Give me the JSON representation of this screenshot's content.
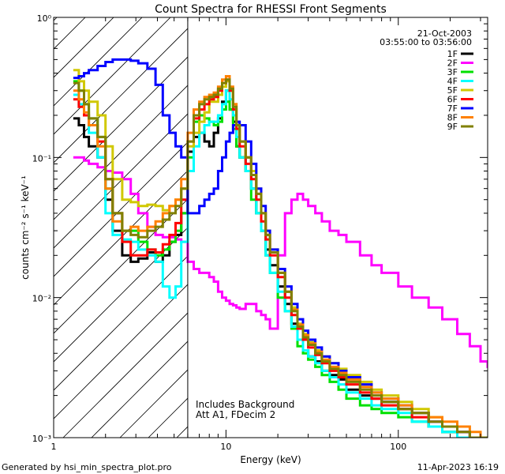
{
  "chart_data": {
    "type": "line",
    "title": "Count Spectra for RHESSI Front Segments",
    "xlabel": "Energy (keV)",
    "ylabel": "counts cm⁻² s⁻¹ keV⁻¹",
    "xscale": "log",
    "yscale": "log",
    "xlim": [
      1,
      330
    ],
    "ylim": [
      0.001,
      1
    ],
    "x_tick_labels": [
      {
        "value": 1,
        "label": "1"
      },
      {
        "value": 10,
        "label": "10"
      },
      {
        "value": 100,
        "label": "100"
      }
    ],
    "y_tick_labels": [
      {
        "value": 1,
        "label": "10⁰"
      },
      {
        "value": 0.1,
        "label": "10⁻¹"
      },
      {
        "value": 0.01,
        "label": "10⁻²"
      },
      {
        "value": 0.001,
        "label": "10⁻³"
      }
    ],
    "header_lines": [
      "21-Oct-2003",
      "03:55:00 to 03:56:00"
    ],
    "annotation_lines": [
      "Includes Background",
      "Att A1, FDecim 2"
    ],
    "footer_left": "Generated by hsi_min_spectra_plot.pro",
    "footer_right": "11-Apr-2023 16:19",
    "hatched_region_x": [
      1,
      6
    ],
    "vertical_line_x": 6,
    "legend_position": "top-right",
    "x_bins": [
      1.3,
      1.4,
      1.5,
      1.6,
      1.8,
      2.0,
      2.2,
      2.5,
      2.8,
      3.1,
      3.5,
      3.9,
      4.3,
      4.7,
      5.1,
      5.5,
      6.0,
      6.5,
      7.0,
      7.5,
      8.0,
      8.5,
      9.0,
      9.5,
      10.0,
      10.5,
      11.0,
      11.5,
      12.0,
      13.0,
      14.0,
      15.0,
      16.0,
      17.0,
      18.0,
      20.0,
      22.0,
      24.0,
      26.0,
      28.0,
      30.0,
      33.0,
      36.0,
      40.0,
      45.0,
      50.0,
      60.0,
      70.0,
      80.0,
      100.0,
      120.0,
      150.0,
      180.0,
      220.0,
      260.0,
      300.0,
      330.0
    ],
    "series": [
      {
        "name": "1F",
        "color": "#000000",
        "values": [
          0.19,
          0.17,
          0.14,
          0.12,
          0.1,
          0.05,
          0.03,
          0.02,
          0.018,
          0.019,
          0.021,
          0.018,
          0.02,
          0.025,
          0.028,
          0.04,
          0.11,
          0.14,
          0.15,
          0.13,
          0.12,
          0.15,
          0.19,
          0.25,
          0.3,
          0.22,
          0.18,
          0.12,
          0.1,
          0.08,
          0.06,
          0.04,
          0.03,
          0.022,
          0.017,
          0.012,
          0.009,
          0.0065,
          0.005,
          0.0042,
          0.0038,
          0.0035,
          0.003,
          0.0028,
          0.0026,
          0.0022,
          0.002,
          0.0019,
          0.0018,
          0.0016,
          0.0015,
          0.0012,
          0.0011,
          0.001,
          0.001,
          0.001,
          0.001
        ]
      },
      {
        "name": "2F",
        "color": "#ff00ff",
        "values": [
          0.1,
          0.1,
          0.095,
          0.09,
          0.085,
          0.08,
          0.078,
          0.07,
          0.055,
          0.04,
          0.032,
          0.028,
          0.027,
          0.027,
          0.026,
          0.025,
          0.018,
          0.016,
          0.015,
          0.015,
          0.014,
          0.013,
          0.011,
          0.01,
          0.0095,
          0.009,
          0.0088,
          0.0085,
          0.0083,
          0.009,
          0.009,
          0.008,
          0.0075,
          0.007,
          0.006,
          0.02,
          0.04,
          0.05,
          0.055,
          0.05,
          0.045,
          0.04,
          0.035,
          0.03,
          0.028,
          0.025,
          0.02,
          0.017,
          0.015,
          0.012,
          0.01,
          0.0085,
          0.007,
          0.0055,
          0.0045,
          0.0035,
          0.0032
        ]
      },
      {
        "name": "3F",
        "color": "#00e000",
        "values": [
          0.35,
          0.3,
          0.24,
          0.19,
          0.14,
          0.06,
          0.04,
          0.03,
          0.03,
          0.025,
          0.022,
          0.02,
          0.022,
          0.025,
          0.03,
          0.04,
          0.1,
          0.18,
          0.2,
          0.19,
          0.18,
          0.17,
          0.18,
          0.22,
          0.25,
          0.22,
          0.16,
          0.12,
          0.1,
          0.08,
          0.05,
          0.04,
          0.03,
          0.02,
          0.015,
          0.01,
          0.008,
          0.006,
          0.0045,
          0.004,
          0.0036,
          0.0032,
          0.0028,
          0.0025,
          0.0022,
          0.0019,
          0.0017,
          0.0016,
          0.0015,
          0.0014,
          0.0013,
          0.0012,
          0.0011,
          0.001,
          0.001,
          0.001,
          0.001
        ]
      },
      {
        "name": "4F",
        "color": "#00ffff",
        "values": [
          0.28,
          0.24,
          0.2,
          0.15,
          0.1,
          0.04,
          0.028,
          0.026,
          0.025,
          0.022,
          0.02,
          0.018,
          0.012,
          0.01,
          0.012,
          0.025,
          0.08,
          0.12,
          0.15,
          0.17,
          0.18,
          0.18,
          0.2,
          0.24,
          0.3,
          0.26,
          0.2,
          0.14,
          0.1,
          0.08,
          0.06,
          0.04,
          0.03,
          0.02,
          0.015,
          0.011,
          0.008,
          0.0062,
          0.005,
          0.0042,
          0.0038,
          0.0034,
          0.003,
          0.0027,
          0.0024,
          0.0021,
          0.0019,
          0.0017,
          0.0016,
          0.0015,
          0.0013,
          0.0012,
          0.0011,
          0.001,
          0.001,
          0.001,
          0.001
        ]
      },
      {
        "name": "5F",
        "color": "#d0c800",
        "values": [
          0.42,
          0.35,
          0.3,
          0.25,
          0.2,
          0.12,
          0.07,
          0.05,
          0.048,
          0.045,
          0.046,
          0.045,
          0.042,
          0.045,
          0.05,
          0.06,
          0.12,
          0.15,
          0.18,
          0.21,
          0.25,
          0.25,
          0.28,
          0.32,
          0.35,
          0.3,
          0.24,
          0.17,
          0.13,
          0.1,
          0.08,
          0.06,
          0.04,
          0.03,
          0.022,
          0.015,
          0.011,
          0.0085,
          0.0065,
          0.0055,
          0.0048,
          0.0042,
          0.0038,
          0.0034,
          0.0031,
          0.0028,
          0.0025,
          0.0022,
          0.002,
          0.0018,
          0.0016,
          0.0014,
          0.0012,
          0.0011,
          0.001,
          0.001,
          0.001
        ]
      },
      {
        "name": "6F",
        "color": "#ff0000",
        "values": [
          0.26,
          0.23,
          0.2,
          0.17,
          0.13,
          0.07,
          0.04,
          0.025,
          0.02,
          0.02,
          0.022,
          0.021,
          0.024,
          0.028,
          0.034,
          0.05,
          0.13,
          0.19,
          0.22,
          0.24,
          0.26,
          0.27,
          0.3,
          0.34,
          0.36,
          0.3,
          0.22,
          0.16,
          0.12,
          0.09,
          0.07,
          0.05,
          0.035,
          0.026,
          0.02,
          0.014,
          0.01,
          0.0075,
          0.006,
          0.005,
          0.0044,
          0.0039,
          0.0034,
          0.003,
          0.0027,
          0.0024,
          0.0021,
          0.0019,
          0.0017,
          0.0016,
          0.0014,
          0.0013,
          0.0012,
          0.0011,
          0.001,
          0.001,
          0.001
        ]
      },
      {
        "name": "7F",
        "color": "#0000ff",
        "values": [
          0.37,
          0.38,
          0.4,
          0.42,
          0.45,
          0.48,
          0.5,
          0.5,
          0.49,
          0.47,
          0.43,
          0.33,
          0.2,
          0.15,
          0.12,
          0.1,
          0.04,
          0.04,
          0.045,
          0.05,
          0.055,
          0.06,
          0.08,
          0.1,
          0.13,
          0.15,
          0.17,
          0.18,
          0.17,
          0.13,
          0.09,
          0.06,
          0.045,
          0.03,
          0.022,
          0.016,
          0.012,
          0.009,
          0.007,
          0.0058,
          0.005,
          0.0044,
          0.0038,
          0.0034,
          0.003,
          0.0027,
          0.0024,
          0.0021,
          0.0019,
          0.0017,
          0.0015,
          0.0013,
          0.0012,
          0.0011,
          0.001,
          0.001,
          0.001
        ]
      },
      {
        "name": "8F",
        "color": "#ff8000",
        "values": [
          0.3,
          0.26,
          0.21,
          0.17,
          0.12,
          0.06,
          0.035,
          0.03,
          0.032,
          0.03,
          0.032,
          0.035,
          0.04,
          0.045,
          0.05,
          0.07,
          0.15,
          0.22,
          0.25,
          0.27,
          0.28,
          0.29,
          0.32,
          0.36,
          0.38,
          0.32,
          0.24,
          0.17,
          0.13,
          0.1,
          0.075,
          0.055,
          0.04,
          0.028,
          0.021,
          0.015,
          0.011,
          0.0082,
          0.0064,
          0.0054,
          0.0047,
          0.0041,
          0.0036,
          0.0032,
          0.0029,
          0.0026,
          0.0023,
          0.0021,
          0.0019,
          0.0017,
          0.0015,
          0.0014,
          0.0013,
          0.0012,
          0.0011,
          0.001,
          0.001
        ]
      },
      {
        "name": "9F",
        "color": "#808000",
        "values": [
          0.34,
          0.3,
          0.24,
          0.19,
          0.14,
          0.07,
          0.04,
          0.03,
          0.028,
          0.027,
          0.03,
          0.032,
          0.036,
          0.04,
          0.045,
          0.06,
          0.13,
          0.2,
          0.24,
          0.26,
          0.27,
          0.28,
          0.31,
          0.34,
          0.36,
          0.31,
          0.23,
          0.17,
          0.13,
          0.1,
          0.075,
          0.055,
          0.04,
          0.028,
          0.021,
          0.015,
          0.011,
          0.008,
          0.0062,
          0.0052,
          0.0046,
          0.004,
          0.0035,
          0.0031,
          0.0028,
          0.0025,
          0.0022,
          0.002,
          0.0018,
          0.0016,
          0.0015,
          0.0013,
          0.0012,
          0.0011,
          0.001,
          0.001,
          0.001
        ]
      }
    ]
  }
}
